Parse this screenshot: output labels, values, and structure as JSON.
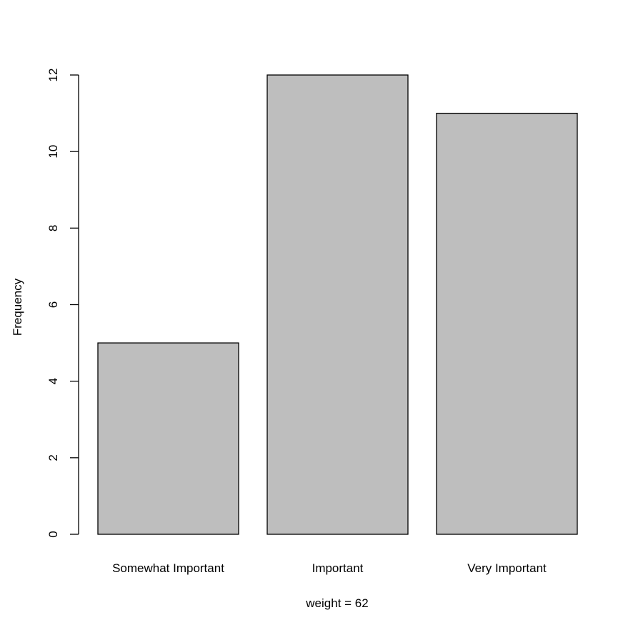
{
  "chart_data": {
    "type": "bar",
    "categories": [
      "Somewhat Important",
      "Important",
      "Very Important"
    ],
    "values": [
      5,
      12,
      11
    ],
    "title": "",
    "xlabel": "weight = 62",
    "ylabel": "Frequency",
    "ylim": [
      0,
      12
    ],
    "yticks": [
      0,
      2,
      4,
      6,
      8,
      10,
      12
    ],
    "grid": false,
    "legend": "none",
    "colors": {
      "bar_fill": "#bebebe",
      "bar_stroke": "#000000",
      "axis": "#000000",
      "background": "#ffffff"
    }
  }
}
